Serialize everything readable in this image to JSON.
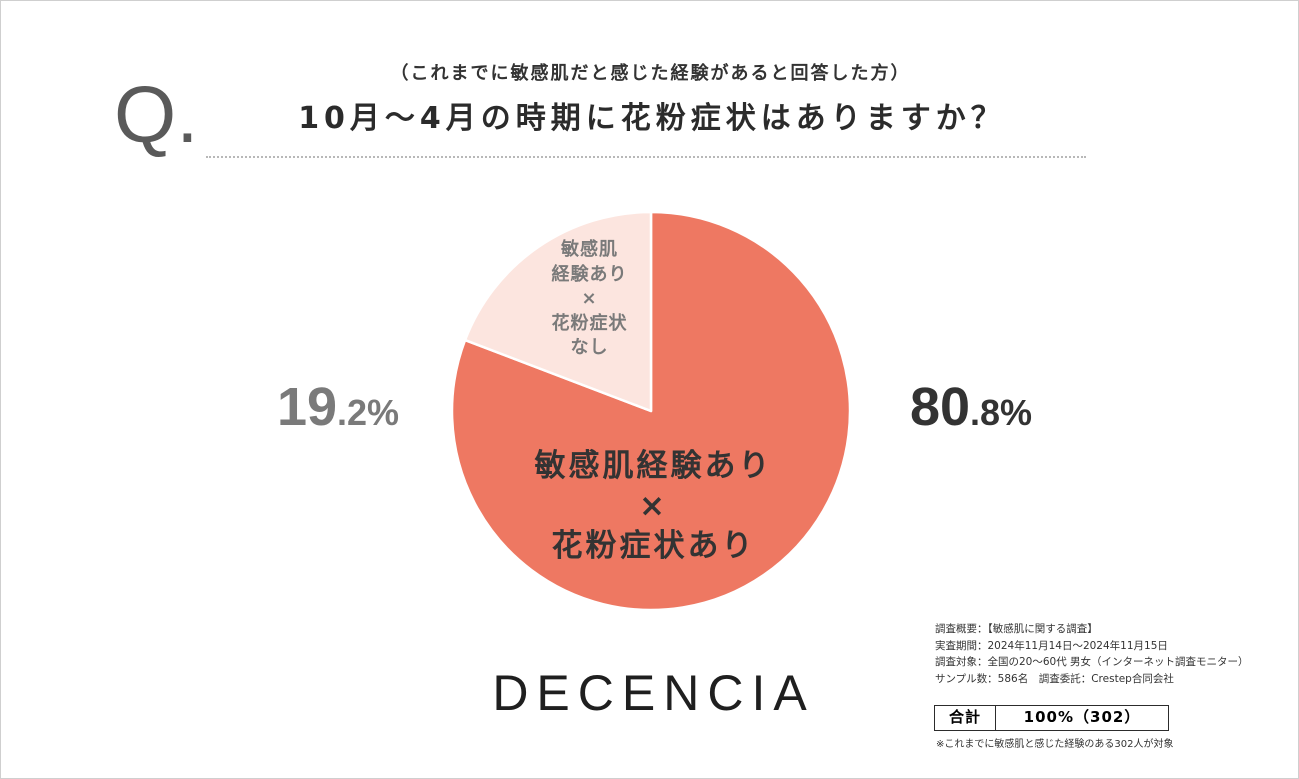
{
  "header": {
    "q_mark": "Q."
  },
  "chart_data": {
    "type": "pie",
    "subtitle": "（これまでに敏感肌だと感じた経験があると回答した方）",
    "title": "10月〜4月の時期に花粉症状はありますか？",
    "unit": "%",
    "slices": [
      {
        "label_lines": [
          "敏感肌経験あり",
          "×",
          "花粉症状あり"
        ],
        "value": 80.8,
        "color": "#EE7862",
        "text_color": "#333333"
      },
      {
        "label_lines": [
          "敏感肌",
          "経験あり",
          "×",
          "花粉症状",
          "なし"
        ],
        "value": 19.2,
        "color": "#FCE5DF",
        "text_color": "#7A7A7A"
      }
    ]
  },
  "brand": {
    "logo": "DECENCIA"
  },
  "survey": {
    "summary_lines": [
      "調査概要：【敏感肌に関する調査】",
      "実査期間：2024年11月14日〜2024年11月15日",
      "調査対象：全国の20〜60代 男女（インターネット調査モニター）",
      "サンプル数：586名　調査委託：Crestep合同会社"
    ],
    "total_label": "合計",
    "total_value": "100%（302）",
    "footnote": "※これまでに敏感肌と感じた経験のある302人が対象"
  }
}
